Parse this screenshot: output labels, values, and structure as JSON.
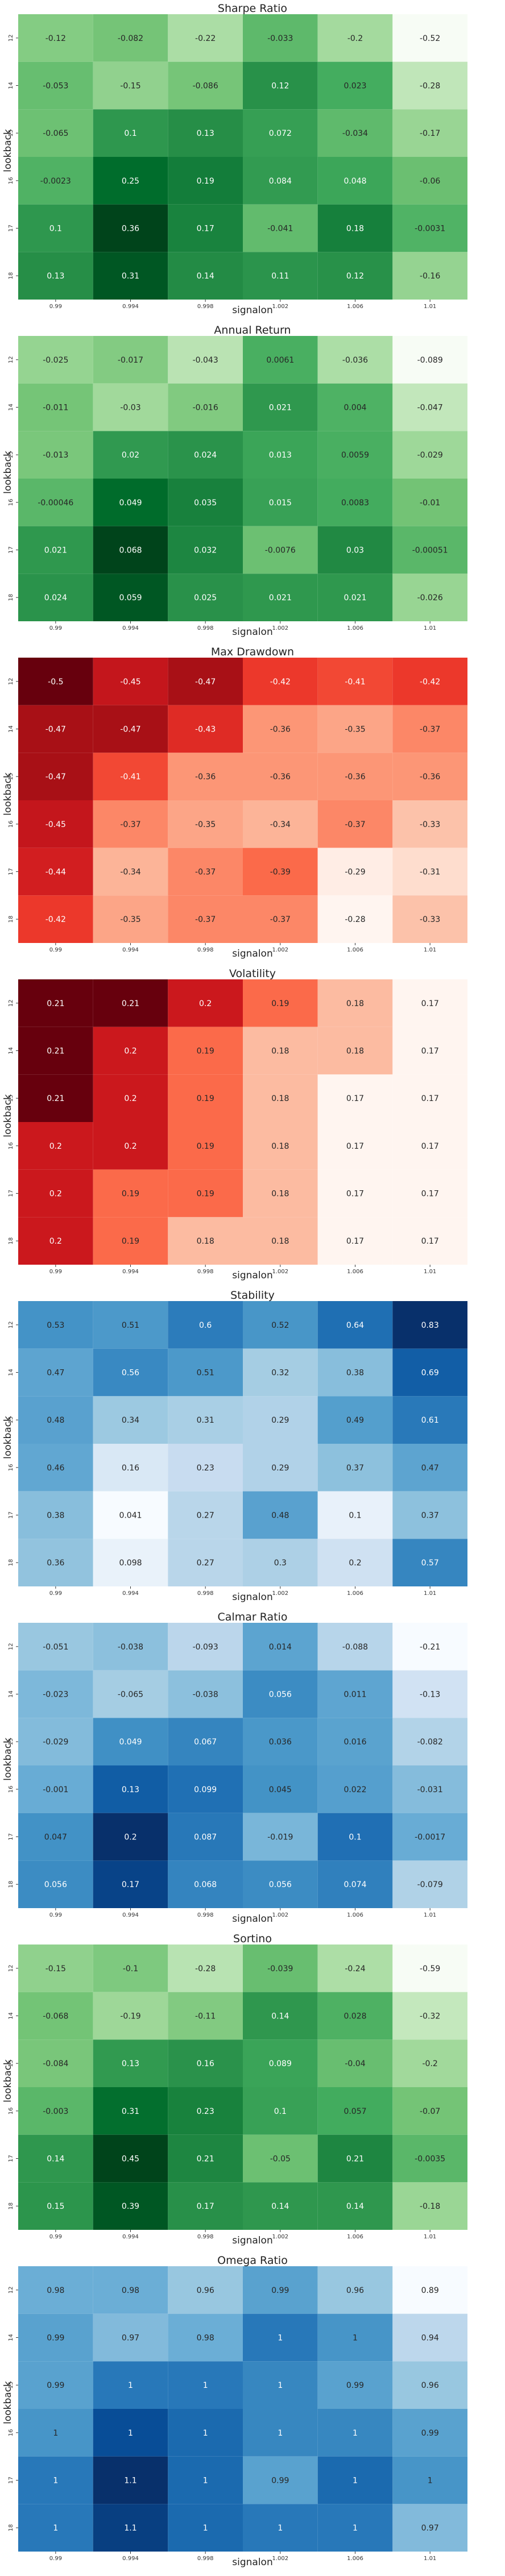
{
  "chart_data": [
    {
      "type": "heatmap",
      "title": "Sharpe Ratio",
      "xlabel": "signalon",
      "ylabel": "lookback",
      "x_ticks": [
        "0.99",
        "0.994",
        "0.998",
        "1.002",
        "1.006",
        "1.01"
      ],
      "y_ticks": [
        "12",
        "14",
        "15",
        "16",
        "17",
        "18"
      ],
      "values": [
        [
          -0.12,
          -0.082,
          -0.22,
          -0.033,
          -0.2,
          -0.52
        ],
        [
          -0.053,
          -0.15,
          -0.086,
          0.12,
          0.023,
          -0.28
        ],
        [
          -0.065,
          0.1,
          0.13,
          0.072,
          -0.034,
          -0.17
        ],
        [
          -0.0023,
          0.25,
          0.19,
          0.084,
          0.048,
          -0.06
        ],
        [
          0.1,
          0.36,
          0.17,
          -0.041,
          0.18,
          -0.0031
        ],
        [
          0.13,
          0.31,
          0.14,
          0.11,
          0.12,
          -0.16
        ]
      ],
      "labels": [
        [
          "-0.12",
          "-0.082",
          "-0.22",
          "-0.033",
          "-0.2",
          "-0.52"
        ],
        [
          "-0.053",
          "-0.15",
          "-0.086",
          "0.12",
          "0.023",
          "-0.28"
        ],
        [
          "-0.065",
          "0.1",
          "0.13",
          "0.072",
          "-0.034",
          "-0.17"
        ],
        [
          "-0.0023",
          "0.25",
          "0.19",
          "0.084",
          "0.048",
          "-0.06"
        ],
        [
          "0.1",
          "0.36",
          "0.17",
          "-0.041",
          "0.18",
          "-0.0031"
        ],
        [
          "0.13",
          "0.31",
          "0.14",
          "0.11",
          "0.12",
          "-0.16"
        ]
      ],
      "colormap": "Greens"
    },
    {
      "type": "heatmap",
      "title": "Annual Return",
      "xlabel": "signalon",
      "ylabel": "lookback",
      "x_ticks": [
        "0.99",
        "0.994",
        "0.998",
        "1.002",
        "1.006",
        "1.01"
      ],
      "y_ticks": [
        "12",
        "14",
        "15",
        "16",
        "17",
        "18"
      ],
      "values": [
        [
          -0.025,
          -0.017,
          -0.043,
          0.0061,
          -0.036,
          -0.089
        ],
        [
          -0.011,
          -0.03,
          -0.016,
          0.021,
          0.004,
          -0.047
        ],
        [
          -0.013,
          0.02,
          0.024,
          0.013,
          0.0059,
          -0.029
        ],
        [
          -0.00046,
          0.049,
          0.035,
          0.015,
          0.0083,
          -0.01
        ],
        [
          0.021,
          0.068,
          0.032,
          -0.0076,
          0.03,
          -0.00051
        ],
        [
          0.024,
          0.059,
          0.025,
          0.021,
          0.021,
          -0.026
        ]
      ],
      "labels": [
        [
          "-0.025",
          "-0.017",
          "-0.043",
          "0.0061",
          "-0.036",
          "-0.089"
        ],
        [
          "-0.011",
          "-0.03",
          "-0.016",
          "0.021",
          "0.004",
          "-0.047"
        ],
        [
          "-0.013",
          "0.02",
          "0.024",
          "0.013",
          "0.0059",
          "-0.029"
        ],
        [
          "-0.00046",
          "0.049",
          "0.035",
          "0.015",
          "0.0083",
          "-0.01"
        ],
        [
          "0.021",
          "0.068",
          "0.032",
          "-0.0076",
          "0.03",
          "-0.00051"
        ],
        [
          "0.024",
          "0.059",
          "0.025",
          "0.021",
          "0.021",
          "-0.026"
        ]
      ],
      "colormap": "Greens"
    },
    {
      "type": "heatmap",
      "title": "Max Drawdown",
      "xlabel": "signalon",
      "ylabel": "lookback",
      "x_ticks": [
        "0.99",
        "0.994",
        "0.998",
        "1.002",
        "1.006",
        "1.01"
      ],
      "y_ticks": [
        "12",
        "14",
        "15",
        "16",
        "17",
        "18"
      ],
      "values": [
        [
          -0.5,
          -0.45,
          -0.47,
          -0.42,
          -0.41,
          -0.42
        ],
        [
          -0.47,
          -0.47,
          -0.43,
          -0.36,
          -0.35,
          -0.37
        ],
        [
          -0.47,
          -0.41,
          -0.36,
          -0.36,
          -0.36,
          -0.36
        ],
        [
          -0.45,
          -0.37,
          -0.35,
          -0.34,
          -0.37,
          -0.33
        ],
        [
          -0.44,
          -0.34,
          -0.37,
          -0.39,
          -0.29,
          -0.31
        ],
        [
          -0.42,
          -0.35,
          -0.37,
          -0.37,
          -0.28,
          -0.33
        ]
      ],
      "labels": [
        [
          "-0.5",
          "-0.45",
          "-0.47",
          "-0.42",
          "-0.41",
          "-0.42"
        ],
        [
          "-0.47",
          "-0.47",
          "-0.43",
          "-0.36",
          "-0.35",
          "-0.37"
        ],
        [
          "-0.47",
          "-0.41",
          "-0.36",
          "-0.36",
          "-0.36",
          "-0.36"
        ],
        [
          "-0.45",
          "-0.37",
          "-0.35",
          "-0.34",
          "-0.37",
          "-0.33"
        ],
        [
          "-0.44",
          "-0.34",
          "-0.37",
          "-0.39",
          "-0.29",
          "-0.31"
        ],
        [
          "-0.42",
          "-0.35",
          "-0.37",
          "-0.37",
          "-0.28",
          "-0.33"
        ]
      ],
      "colormap": "Reds_r"
    },
    {
      "type": "heatmap",
      "title": "Volatility",
      "xlabel": "signalon",
      "ylabel": "lookback",
      "x_ticks": [
        "0.99",
        "0.994",
        "0.998",
        "1.002",
        "1.006",
        "1.01"
      ],
      "y_ticks": [
        "12",
        "14",
        "15",
        "16",
        "17",
        "18"
      ],
      "values": [
        [
          0.21,
          0.21,
          0.2,
          0.19,
          0.18,
          0.17
        ],
        [
          0.21,
          0.2,
          0.19,
          0.18,
          0.18,
          0.17
        ],
        [
          0.21,
          0.2,
          0.19,
          0.18,
          0.17,
          0.17
        ],
        [
          0.2,
          0.2,
          0.19,
          0.18,
          0.17,
          0.17
        ],
        [
          0.2,
          0.19,
          0.19,
          0.18,
          0.17,
          0.17
        ],
        [
          0.2,
          0.19,
          0.18,
          0.18,
          0.17,
          0.17
        ]
      ],
      "labels": [
        [
          "0.21",
          "0.21",
          "0.2",
          "0.19",
          "0.18",
          "0.17"
        ],
        [
          "0.21",
          "0.2",
          "0.19",
          "0.18",
          "0.18",
          "0.17"
        ],
        [
          "0.21",
          "0.2",
          "0.19",
          "0.18",
          "0.17",
          "0.17"
        ],
        [
          "0.2",
          "0.2",
          "0.19",
          "0.18",
          "0.17",
          "0.17"
        ],
        [
          "0.2",
          "0.19",
          "0.19",
          "0.18",
          "0.17",
          "0.17"
        ],
        [
          "0.2",
          "0.19",
          "0.18",
          "0.18",
          "0.17",
          "0.17"
        ]
      ],
      "colormap": "Reds"
    },
    {
      "type": "heatmap",
      "title": "Stability",
      "xlabel": "signalon",
      "ylabel": "lookback",
      "x_ticks": [
        "0.99",
        "0.994",
        "0.998",
        "1.002",
        "1.006",
        "1.01"
      ],
      "y_ticks": [
        "12",
        "14",
        "15",
        "16",
        "17",
        "18"
      ],
      "values": [
        [
          0.53,
          0.51,
          0.6,
          0.52,
          0.64,
          0.83
        ],
        [
          0.47,
          0.56,
          0.51,
          0.32,
          0.38,
          0.69
        ],
        [
          0.48,
          0.34,
          0.31,
          0.29,
          0.49,
          0.61
        ],
        [
          0.46,
          0.16,
          0.23,
          0.29,
          0.37,
          0.47
        ],
        [
          0.38,
          0.041,
          0.27,
          0.48,
          0.1,
          0.37
        ],
        [
          0.36,
          0.098,
          0.27,
          0.3,
          0.2,
          0.57
        ]
      ],
      "labels": [
        [
          "0.53",
          "0.51",
          "0.6",
          "0.52",
          "0.64",
          "0.83"
        ],
        [
          "0.47",
          "0.56",
          "0.51",
          "0.32",
          "0.38",
          "0.69"
        ],
        [
          "0.48",
          "0.34",
          "0.31",
          "0.29",
          "0.49",
          "0.61"
        ],
        [
          "0.46",
          "0.16",
          "0.23",
          "0.29",
          "0.37",
          "0.47"
        ],
        [
          "0.38",
          "0.041",
          "0.27",
          "0.48",
          "0.1",
          "0.37"
        ],
        [
          "0.36",
          "0.098",
          "0.27",
          "0.3",
          "0.2",
          "0.57"
        ]
      ],
      "colormap": "Blues"
    },
    {
      "type": "heatmap",
      "title": "Calmar Ratio",
      "xlabel": "signalon",
      "ylabel": "lookback",
      "x_ticks": [
        "0.99",
        "0.994",
        "0.998",
        "1.002",
        "1.006",
        "1.01"
      ],
      "y_ticks": [
        "12",
        "14",
        "15",
        "16",
        "17",
        "18"
      ],
      "values": [
        [
          -0.051,
          -0.038,
          -0.093,
          0.014,
          -0.088,
          -0.21
        ],
        [
          -0.023,
          -0.065,
          -0.038,
          0.056,
          0.011,
          -0.13
        ],
        [
          -0.029,
          0.049,
          0.067,
          0.036,
          0.016,
          -0.082
        ],
        [
          -0.001,
          0.13,
          0.099,
          0.045,
          0.022,
          -0.031
        ],
        [
          0.047,
          0.2,
          0.087,
          -0.019,
          0.1,
          -0.0017
        ],
        [
          0.056,
          0.17,
          0.068,
          0.056,
          0.074,
          -0.079
        ]
      ],
      "labels": [
        [
          "-0.051",
          "-0.038",
          "-0.093",
          "0.014",
          "-0.088",
          "-0.21"
        ],
        [
          "-0.023",
          "-0.065",
          "-0.038",
          "0.056",
          "0.011",
          "-0.13"
        ],
        [
          "-0.029",
          "0.049",
          "0.067",
          "0.036",
          "0.016",
          "-0.082"
        ],
        [
          "-0.001",
          "0.13",
          "0.099",
          "0.045",
          "0.022",
          "-0.031"
        ],
        [
          "0.047",
          "0.2",
          "0.087",
          "-0.019",
          "0.1",
          "-0.0017"
        ],
        [
          "0.056",
          "0.17",
          "0.068",
          "0.056",
          "0.074",
          "-0.079"
        ]
      ],
      "colormap": "Blues"
    },
    {
      "type": "heatmap",
      "title": "Sortino",
      "xlabel": "signalon",
      "ylabel": "lookback",
      "x_ticks": [
        "0.99",
        "0.994",
        "0.998",
        "1.002",
        "1.006",
        "1.01"
      ],
      "y_ticks": [
        "12",
        "14",
        "15",
        "16",
        "17",
        "18"
      ],
      "values": [
        [
          -0.15,
          -0.1,
          -0.28,
          -0.039,
          -0.24,
          -0.59
        ],
        [
          -0.068,
          -0.19,
          -0.11,
          0.14,
          0.028,
          -0.32
        ],
        [
          -0.084,
          0.13,
          0.16,
          0.089,
          -0.04,
          -0.2
        ],
        [
          -0.003,
          0.31,
          0.23,
          0.1,
          0.057,
          -0.07
        ],
        [
          0.14,
          0.45,
          0.21,
          -0.05,
          0.21,
          -0.0035
        ],
        [
          0.15,
          0.39,
          0.17,
          0.14,
          0.14,
          -0.18
        ]
      ],
      "labels": [
        [
          "-0.15",
          "-0.1",
          "-0.28",
          "-0.039",
          "-0.24",
          "-0.59"
        ],
        [
          "-0.068",
          "-0.19",
          "-0.11",
          "0.14",
          "0.028",
          "-0.32"
        ],
        [
          "-0.084",
          "0.13",
          "0.16",
          "0.089",
          "-0.04",
          "-0.2"
        ],
        [
          "-0.003",
          "0.31",
          "0.23",
          "0.1",
          "0.057",
          "-0.07"
        ],
        [
          "0.14",
          "0.45",
          "0.21",
          "-0.05",
          "0.21",
          "-0.0035"
        ],
        [
          "0.15",
          "0.39",
          "0.17",
          "0.14",
          "0.14",
          "-0.18"
        ]
      ],
      "colormap": "Greens"
    },
    {
      "type": "heatmap",
      "title": "Omega Ratio",
      "xlabel": "signalon",
      "ylabel": "lookback",
      "x_ticks": [
        "0.99",
        "0.994",
        "0.998",
        "1.002",
        "1.006",
        "1.01"
      ],
      "y_ticks": [
        "12",
        "14",
        "15",
        "16",
        "17",
        "18"
      ],
      "values": [
        [
          0.98,
          0.98,
          0.96,
          0.99,
          0.96,
          0.89
        ],
        [
          0.99,
          0.97,
          0.98,
          1.02,
          1.0,
          0.94
        ],
        [
          0.99,
          1.02,
          1.02,
          1.01,
          0.99,
          0.96
        ],
        [
          1.0,
          1.05,
          1.03,
          1.01,
          1.01,
          0.99
        ],
        [
          1.02,
          1.07,
          1.03,
          0.99,
          1.03,
          1.0
        ],
        [
          1.02,
          1.06,
          1.03,
          1.02,
          1.02,
          0.97
        ]
      ],
      "labels": [
        [
          "0.98",
          "0.98",
          "0.96",
          "0.99",
          "0.96",
          "0.89"
        ],
        [
          "0.99",
          "0.97",
          "0.98",
          "1",
          "1",
          "0.94"
        ],
        [
          "0.99",
          "1",
          "1",
          "1",
          "0.99",
          "0.96"
        ],
        [
          "1",
          "1",
          "1",
          "1",
          "1",
          "0.99"
        ],
        [
          "1",
          "1.1",
          "1",
          "0.99",
          "1",
          "1"
        ],
        [
          "1",
          "1.1",
          "1",
          "1",
          "1",
          "0.97"
        ]
      ],
      "colormap": "Blues"
    }
  ]
}
